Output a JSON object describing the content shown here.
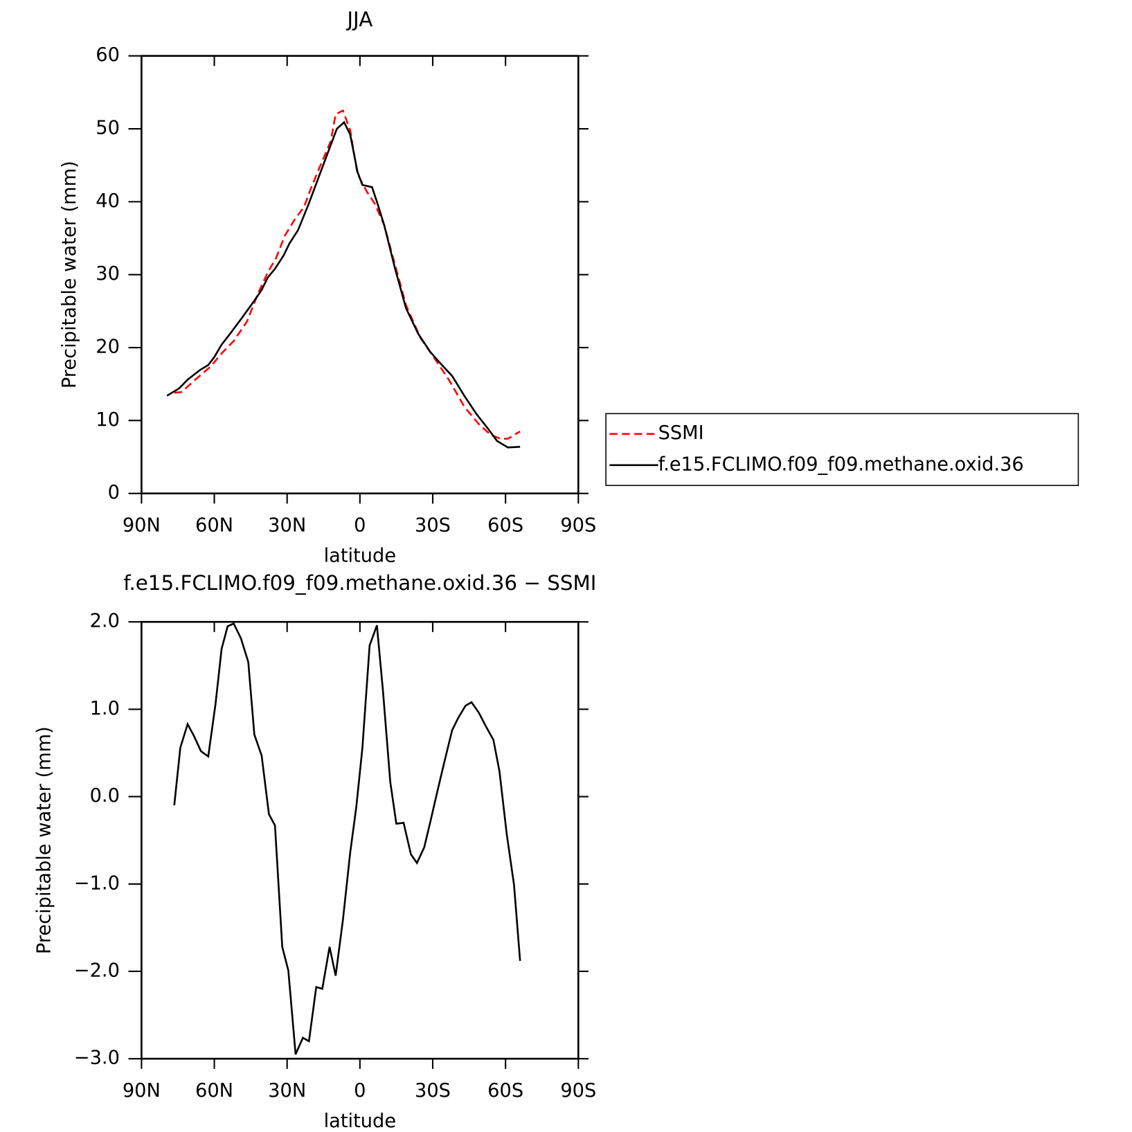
{
  "chart_data": [
    {
      "type": "line",
      "title": "JJA",
      "xlabel": "latitude",
      "ylabel": "Precipitable water (mm)",
      "xlim": [
        90,
        -90
      ],
      "xticks": [
        {
          "value": 90,
          "label": "90N"
        },
        {
          "value": 60,
          "label": "60N"
        },
        {
          "value": 30,
          "label": "30N"
        },
        0,
        {
          "value": -30,
          "label": "30S"
        },
        {
          "value": -60,
          "label": "60S"
        },
        {
          "value": -90,
          "label": "90S"
        }
      ],
      "ylim": [
        0,
        60
      ],
      "yticks": [
        0,
        10,
        20,
        30,
        40,
        50,
        60
      ],
      "legend": "right",
      "series": [
        {
          "name": "SSMI",
          "color": "#ff0000",
          "line_style": "dashed",
          "x": [
            76.5,
            73.5,
            67.5,
            61.5,
            57,
            52,
            46.5,
            42,
            38,
            34.5,
            31,
            27,
            23,
            20,
            16.5,
            12,
            10,
            7,
            4,
            1,
            -3,
            -6,
            -10,
            -14.5,
            -19,
            -25,
            -31,
            -37,
            -43,
            -49,
            -54,
            -58,
            -61,
            -66
          ],
          "values": [
            13.8,
            13.9,
            15.7,
            17.4,
            19.2,
            20.9,
            23.6,
            27.4,
            30.3,
            32.3,
            35.3,
            37.5,
            39.3,
            42,
            44.8,
            48.3,
            52,
            52.5,
            49.8,
            43.8,
            41.3,
            39.8,
            36.8,
            31.3,
            25.8,
            21.3,
            18.4,
            15.4,
            11.9,
            9.5,
            8,
            7.5,
            7.5,
            8.5
          ]
        },
        {
          "name": "f.e15.FCLIMO.f09_f09.methane.oxid.36",
          "color": "#000000",
          "line_style": "solid",
          "x": [
            79.5,
            74.5,
            71,
            66,
            62.5,
            60,
            57,
            53.5,
            49,
            44,
            40.5,
            38,
            35,
            31.5,
            29,
            25.5,
            21,
            16.5,
            12,
            9.5,
            6.5,
            4,
            1,
            -1,
            -5,
            -7,
            -10,
            -14.5,
            -19,
            -24,
            -29,
            -33,
            -38,
            -43,
            -48,
            -52.5,
            -56.5,
            -61,
            -66
          ],
          "values": [
            13.4,
            14.4,
            15.6,
            16.9,
            17.6,
            18.7,
            20.4,
            21.9,
            23.9,
            26.2,
            27.9,
            29.6,
            30.8,
            32.6,
            34.3,
            36.1,
            39.8,
            43.8,
            47.8,
            50,
            50.9,
            49.2,
            44.1,
            42.3,
            42,
            40,
            36.8,
            30.8,
            25.4,
            21.9,
            19.4,
            17.9,
            16.1,
            13.4,
            10.9,
            9,
            7.2,
            6.3,
            6.4
          ]
        }
      ]
    },
    {
      "type": "line",
      "title": "f.e15.FCLIMO.f09_f09.methane.oxid.36 − SSMI",
      "xlabel": "latitude",
      "ylabel": "Precipitable water (mm)",
      "xlim": [
        90,
        -90
      ],
      "xticks": [
        {
          "value": 90,
          "label": "90N"
        },
        {
          "value": 60,
          "label": "60N"
        },
        {
          "value": 30,
          "label": "30N"
        },
        0,
        {
          "value": -30,
          "label": "30S"
        },
        {
          "value": -60,
          "label": "60S"
        },
        {
          "value": -90,
          "label": "90S"
        }
      ],
      "ylim": [
        -3,
        2
      ],
      "yticks": [
        {
          "value": -3,
          "label": "−3.0"
        },
        {
          "value": -2,
          "label": "−2.0"
        },
        {
          "value": -1,
          "label": "−1.0"
        },
        {
          "value": 0,
          "label": "0.0"
        },
        {
          "value": 1,
          "label": "1.0"
        },
        {
          "value": 2,
          "label": "2.0"
        }
      ],
      "series": [
        {
          "color": "#000000",
          "line_style": "solid",
          "x": [
            76.5,
            74,
            71,
            68.5,
            65.5,
            62.5,
            59.5,
            57,
            54.5,
            52,
            49,
            46,
            43.5,
            40.5,
            37.5,
            35,
            32,
            29.5,
            26.5,
            23.5,
            21,
            18,
            15.5,
            12.5,
            10,
            7,
            4,
            1.5,
            -1,
            -4,
            -7,
            -9.5,
            -12.5,
            -15,
            -18,
            -21,
            -23.5,
            -26.5,
            -29,
            -32,
            -35,
            -38,
            -40.5,
            -43.5,
            -46,
            -49,
            -52,
            -55,
            -57.5,
            -60.5,
            -63.5,
            -66
          ],
          "values": [
            -0.1,
            0.56,
            0.83,
            0.7,
            0.52,
            0.46,
            1.06,
            1.69,
            1.95,
            1.98,
            1.81,
            1.54,
            0.71,
            0.47,
            -0.2,
            -0.33,
            -1.72,
            -1.99,
            -2.95,
            -2.76,
            -2.8,
            -2.18,
            -2.2,
            -1.72,
            -2.05,
            -1.41,
            -0.64,
            -0.12,
            0.55,
            1.73,
            1.96,
            1.21,
            0.17,
            -0.31,
            -0.3,
            -0.66,
            -0.76,
            -0.58,
            -0.29,
            0.07,
            0.42,
            0.76,
            0.9,
            1.04,
            1.08,
            0.96,
            0.8,
            0.65,
            0.29,
            -0.43,
            -1.01,
            -1.88
          ]
        }
      ]
    }
  ]
}
